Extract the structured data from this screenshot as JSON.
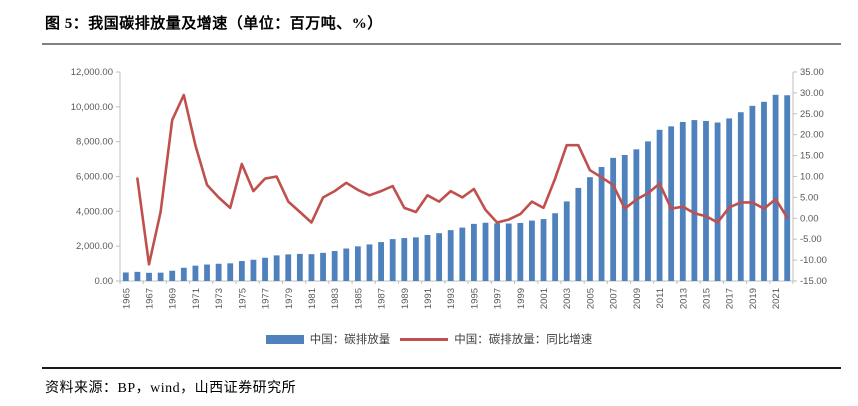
{
  "figure": {
    "title": "图 5：我国碳排放量及增速（单位：百万吨、%）",
    "source": "资料来源：BP，wind，山西证券研究所"
  },
  "colors": {
    "bar": "#4F81BD",
    "line": "#C0504D",
    "axis": "#BFBFBF",
    "tick_text": "#595959",
    "title_rule": "#808080",
    "footer_rule": "#1a1a1a",
    "legend_text": "#404040"
  },
  "legend": [
    {
      "type": "bar",
      "label": "中国：碳排放量"
    },
    {
      "type": "line",
      "label": "中国：碳排放量：同比增速"
    }
  ],
  "chart_data": {
    "type": "bar+line combo",
    "title": "图 5：我国碳排放量及增速（单位：百万吨、%）",
    "grid": "off",
    "legend_position": "bottom-center",
    "x_label_rotation": -90,
    "years": [
      1965,
      1966,
      1967,
      1968,
      1969,
      1970,
      1971,
      1972,
      1973,
      1974,
      1975,
      1976,
      1977,
      1978,
      1979,
      1980,
      1981,
      1982,
      1983,
      1984,
      1985,
      1986,
      1987,
      1988,
      1989,
      1990,
      1991,
      1992,
      1993,
      1994,
      1995,
      1996,
      1997,
      1998,
      1999,
      2000,
      2001,
      2002,
      2003,
      2004,
      2005,
      2006,
      2007,
      2008,
      2009,
      2010,
      2011,
      2012,
      2013,
      2014,
      2015,
      2016,
      2017,
      2018,
      2019,
      2020,
      2021,
      2022
    ],
    "x_tick_labels": [
      "1965",
      "1967",
      "1969",
      "1971",
      "1973",
      "1975",
      "1977",
      "1979",
      "1981",
      "1983",
      "1985",
      "1987",
      "1989",
      "1991",
      "1993",
      "1995",
      "1997",
      "1999",
      "2001",
      "2003",
      "2005",
      "2007",
      "2009",
      "2011",
      "2013",
      "2015",
      "2017",
      "2019",
      "2021"
    ],
    "series": [
      {
        "name": "中国：碳排放量",
        "type": "bar",
        "axis": "left",
        "unit": "百万吨",
        "values": [
          490,
          525,
          470,
          480,
          590,
          760,
          880,
          945,
          990,
          1015,
          1145,
          1220,
          1335,
          1470,
          1530,
          1555,
          1540,
          1615,
          1720,
          1865,
          1990,
          2100,
          2235,
          2405,
          2465,
          2505,
          2640,
          2745,
          2920,
          3065,
          3280,
          3345,
          3310,
          3300,
          3335,
          3470,
          3555,
          3890,
          4570,
          5345,
          5960,
          6545,
          7070,
          7235,
          7560,
          8015,
          8680,
          8880,
          9130,
          9240,
          9190,
          9100,
          9335,
          9690,
          10055,
          10290,
          10690,
          10665
        ]
      },
      {
        "name": "中国：碳排放量：同比增速",
        "type": "line",
        "axis": "right",
        "unit": "%",
        "values": [
          null,
          9.5,
          -11,
          1.5,
          23.5,
          29.5,
          17.5,
          8,
          5,
          2.5,
          13,
          6.5,
          9.5,
          10,
          4,
          1.5,
          -1,
          5,
          6.5,
          8.5,
          6.8,
          5.5,
          6.5,
          7.7,
          2.5,
          1.5,
          5.5,
          4,
          6.5,
          5,
          7,
          2,
          -1,
          -0.3,
          1,
          4,
          2.5,
          9.5,
          17.5,
          17.5,
          11.5,
          9.8,
          8,
          2.3,
          4.5,
          6,
          8.3,
          2.3,
          2.8,
          1.2,
          0.5,
          -1,
          2.6,
          3.8,
          3.8,
          2.3,
          4.6,
          0.2
        ]
      }
    ],
    "axes": {
      "left": {
        "min": 0,
        "max": 12000,
        "step": 2000,
        "tick_labels": [
          "0.00",
          "2,000.00",
          "4,000.00",
          "6,000.00",
          "8,000.00",
          "10,000.00",
          "12,000.00"
        ]
      },
      "right": {
        "min": -15,
        "max": 35,
        "step": 5,
        "tick_labels": [
          "-15.00",
          "-10.00",
          "-5.00",
          "0.00",
          "5.00",
          "10.00",
          "15.00",
          "20.00",
          "25.00",
          "30.00",
          "35.00"
        ]
      }
    }
  }
}
